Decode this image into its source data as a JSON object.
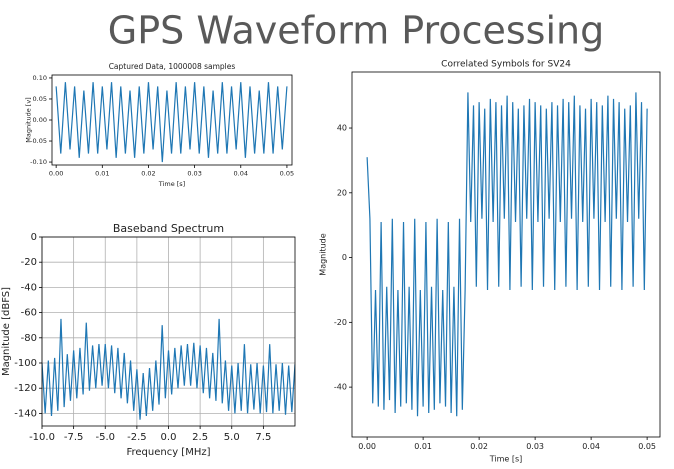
{
  "title": "GPS Waveform Processing",
  "chart_data": [
    {
      "type": "line",
      "title": "Captured Data, 1000008 samples",
      "x_label": "Time [s]",
      "y_label": "Magnitude [v]",
      "xlim": [
        -0.0009,
        0.0511
      ],
      "ylim": [
        -0.107,
        0.107
      ],
      "grid": false,
      "xticks": [
        {
          "value": 0,
          "label": "0.00"
        },
        {
          "value": 0.01,
          "label": "0.01"
        },
        {
          "value": 0.02,
          "label": "0.02"
        },
        {
          "value": 0.03,
          "label": "0.03"
        },
        {
          "value": 0.04,
          "label": "0.04"
        },
        {
          "value": 0.05,
          "label": "0.05"
        }
      ],
      "yticks": [
        {
          "value": 0.1,
          "label": "0.10"
        },
        {
          "value": 0.05,
          "label": "0.05"
        },
        {
          "value": 0,
          "label": "0.00"
        },
        {
          "value": -0.05,
          "label": "-0.05"
        },
        {
          "value": -0.1,
          "label": "-0.10"
        }
      ],
      "series": [
        {
          "color": "#1f77b4",
          "x": [
            0,
            0.001,
            0.002,
            0.003,
            0.004,
            0.005,
            0.006,
            0.007,
            0.008,
            0.009,
            0.01,
            0.011,
            0.012,
            0.013,
            0.014,
            0.015,
            0.016,
            0.017,
            0.018,
            0.019,
            0.02,
            0.021,
            0.022,
            0.023,
            0.024,
            0.025,
            0.026,
            0.027,
            0.028,
            0.029,
            0.03,
            0.031,
            0.032,
            0.033,
            0.034,
            0.035,
            0.036,
            0.037,
            0.038,
            0.039,
            0.04,
            0.041,
            0.042,
            0.043,
            0.044,
            0.045,
            0.046,
            0.047,
            0.048,
            0.049,
            0.05
          ],
          "values": [
            0.08,
            -0.08,
            0.09,
            -0.07,
            0.08,
            -0.09,
            0.07,
            -0.08,
            0.09,
            -0.08,
            0.08,
            -0.07,
            0.09,
            -0.09,
            0.08,
            -0.08,
            0.07,
            -0.09,
            0.08,
            -0.08,
            0.09,
            -0.07,
            0.08,
            -0.1,
            0.07,
            -0.08,
            0.09,
            -0.08,
            0.08,
            -0.07,
            0.09,
            -0.08,
            0.08,
            -0.09,
            0.07,
            -0.08,
            0.09,
            -0.08,
            0.08,
            -0.07,
            0.09,
            -0.09,
            0.08,
            -0.08,
            0.07,
            -0.08,
            0.09,
            -0.08,
            0.08,
            -0.07,
            0.08
          ]
        }
      ]
    },
    {
      "type": "line",
      "title": "Baseband Spectrum",
      "x_label": "Frequency [MHz]",
      "y_label": "Magnitude [dBFS]",
      "xlim": [
        -10,
        10
      ],
      "ylim": [
        -150,
        0
      ],
      "grid": true,
      "xticks": [
        {
          "value": -10,
          "label": "-10.0"
        },
        -7.5,
        {
          "value": -5,
          "label": "-5.0"
        },
        -2.5,
        {
          "value": 0,
          "label": "0.0"
        },
        2.5,
        {
          "value": 5,
          "label": "5.0"
        },
        7.5
      ],
      "yticks": [
        0,
        -20,
        -40,
        -60,
        -80,
        -100,
        -120,
        -140
      ],
      "series": [
        {
          "color": "#1f77b4",
          "x": [
            -10,
            -9.75,
            -9.5,
            -9.25,
            -9,
            -8.75,
            -8.5,
            -8.25,
            -8,
            -7.75,
            -7.5,
            -7.25,
            -7,
            -6.75,
            -6.5,
            -6.25,
            -6,
            -5.75,
            -5.5,
            -5.25,
            -5,
            -4.75,
            -4.5,
            -4.25,
            -4,
            -3.75,
            -3.5,
            -3.25,
            -3,
            -2.75,
            -2.5,
            -2.25,
            -2,
            -1.75,
            -1.5,
            -1.25,
            -1,
            -0.75,
            -0.5,
            -0.25,
            0,
            0.25,
            0.5,
            0.75,
            1,
            1.25,
            1.5,
            1.75,
            2,
            2.25,
            2.5,
            2.75,
            3,
            3.25,
            3.5,
            3.75,
            4,
            4.25,
            4.5,
            4.75,
            5,
            5.25,
            5.5,
            5.75,
            6,
            6.25,
            6.5,
            6.75,
            7,
            7.25,
            7.5,
            7.75,
            8,
            8.25,
            8.5,
            8.75,
            9,
            9.25,
            9.5,
            9.75,
            10
          ],
          "values": [
            -100,
            -140,
            -98,
            -142,
            -96,
            -138,
            -65,
            -135,
            -93,
            -130,
            -90,
            -128,
            -88,
            -125,
            -68,
            -122,
            -86,
            -120,
            -85,
            -118,
            -85,
            -120,
            -86,
            -124,
            -88,
            -128,
            -92,
            -132,
            -98,
            -138,
            -105,
            -145,
            -108,
            -142,
            -104,
            -138,
            -98,
            -133,
            -70,
            -128,
            -90,
            -125,
            -88,
            -120,
            -86,
            -118,
            -85,
            -118,
            -84,
            -120,
            -86,
            -124,
            -88,
            -128,
            -92,
            -130,
            -65,
            -132,
            -98,
            -138,
            -102,
            -140,
            -100,
            -138,
            -85,
            -140,
            -101,
            -137,
            -100,
            -140,
            -102,
            -139,
            -85,
            -140,
            -101,
            -138,
            -100,
            -141,
            -102,
            -139,
            -101
          ]
        }
      ]
    },
    {
      "type": "line",
      "title": "Correlated Symbols for SV24",
      "x_label": "Time [s]",
      "y_label": "Magnitude",
      "xlim": [
        -0.0027,
        0.0523
      ],
      "ylim": [
        -55.4,
        57.3
      ],
      "grid": false,
      "xticks": [
        {
          "value": 0,
          "label": "0.00"
        },
        {
          "value": 0.01,
          "label": "0.01"
        },
        {
          "value": 0.02,
          "label": "0.02"
        },
        {
          "value": 0.03,
          "label": "0.03"
        },
        {
          "value": 0.04,
          "label": "0.04"
        },
        {
          "value": 0.05,
          "label": "0.05"
        }
      ],
      "yticks": [
        -40,
        -20,
        0,
        20,
        40
      ],
      "series": [
        {
          "color": "#1f77b4",
          "x": [
            0,
            0.0005,
            0.001,
            0.0015,
            0.002,
            0.0025,
            0.003,
            0.0035,
            0.004,
            0.0045,
            0.005,
            0.0055,
            0.006,
            0.0065,
            0.007,
            0.0075,
            0.008,
            0.0085,
            0.009,
            0.0095,
            0.01,
            0.0105,
            0.011,
            0.0115,
            0.012,
            0.0125,
            0.013,
            0.0135,
            0.014,
            0.0145,
            0.015,
            0.0155,
            0.016,
            0.0165,
            0.017,
            0.0175,
            0.018,
            0.0185,
            0.019,
            0.0195,
            0.02,
            0.0205,
            0.021,
            0.0215,
            0.022,
            0.0225,
            0.023,
            0.0235,
            0.024,
            0.0245,
            0.025,
            0.0255,
            0.026,
            0.0265,
            0.027,
            0.0275,
            0.028,
            0.0285,
            0.029,
            0.0295,
            0.03,
            0.0305,
            0.031,
            0.0315,
            0.032,
            0.0325,
            0.033,
            0.0335,
            0.034,
            0.0345,
            0.035,
            0.0355,
            0.036,
            0.0365,
            0.037,
            0.0375,
            0.038,
            0.0385,
            0.039,
            0.0395,
            0.04,
            0.0405,
            0.041,
            0.0415,
            0.042,
            0.0425,
            0.043,
            0.0435,
            0.044,
            0.0445,
            0.045,
            0.0455,
            0.046,
            0.0465,
            0.047,
            0.0475,
            0.048,
            0.0485,
            0.049,
            0.0495,
            0.05
          ],
          "values": [
            31,
            12,
            -45,
            -10,
            -46,
            11,
            -47,
            -9,
            -44,
            12,
            -48,
            -10,
            -46,
            11,
            -45,
            -9,
            -47,
            12,
            -49,
            -10,
            -46,
            11,
            -48,
            -9,
            -47,
            12,
            -45,
            -10,
            -46,
            11,
            -48,
            -9,
            -49,
            12,
            -47,
            -10,
            51,
            11,
            47,
            -9,
            48,
            12,
            46,
            -10,
            49,
            11,
            48,
            -9,
            47,
            12,
            50,
            -10,
            48,
            11,
            46,
            -9,
            47,
            12,
            49,
            -10,
            48,
            11,
            47,
            -9,
            46,
            12,
            48,
            -10,
            47,
            11,
            49,
            -9,
            48,
            12,
            50,
            -10,
            47,
            11,
            46,
            -9,
            49,
            12,
            48,
            -10,
            47,
            11,
            50,
            -9,
            49,
            12,
            48,
            -10,
            46,
            11,
            47,
            -9,
            51,
            12,
            48,
            -10,
            46
          ]
        }
      ]
    }
  ]
}
